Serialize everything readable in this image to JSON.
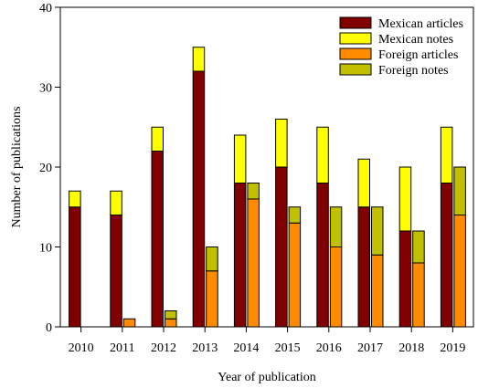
{
  "chart_data": {
    "type": "bar",
    "subtype": "grouped-stacked",
    "title": "",
    "xlabel": "Year of publication",
    "ylabel": "Number of publications",
    "ylim": [
      0,
      40
    ],
    "yticks": [
      0,
      10,
      20,
      30,
      40
    ],
    "grid": false,
    "legend_position": "top-right",
    "categories": [
      "2010",
      "2011",
      "2012",
      "2013",
      "2014",
      "2015",
      "2016",
      "2017",
      "2018",
      "2019"
    ],
    "groups": [
      {
        "stack": "Mexican",
        "series": [
          "Mexican articles",
          "Mexican notes"
        ]
      },
      {
        "stack": "Foreign",
        "series": [
          "Foreign articles",
          "Foreign notes"
        ]
      }
    ],
    "series": [
      {
        "name": "Mexican articles",
        "stack": "Mexican",
        "color": "#800000",
        "values": [
          15,
          14,
          22,
          32,
          18,
          20,
          18,
          15,
          12,
          18
        ]
      },
      {
        "name": "Mexican notes",
        "stack": "Mexican",
        "color": "#ffff00",
        "values": [
          2,
          3,
          3,
          3,
          6,
          6,
          7,
          6,
          8,
          7
        ]
      },
      {
        "name": "Foreign articles",
        "stack": "Foreign",
        "color": "#ff8c00",
        "values": [
          0,
          1,
          1,
          7,
          16,
          13,
          10,
          9,
          8,
          14
        ]
      },
      {
        "name": "Foreign notes",
        "stack": "Foreign",
        "color": "#c0c000",
        "values": [
          0,
          0,
          1,
          3,
          2,
          2,
          5,
          6,
          4,
          6
        ]
      }
    ]
  }
}
